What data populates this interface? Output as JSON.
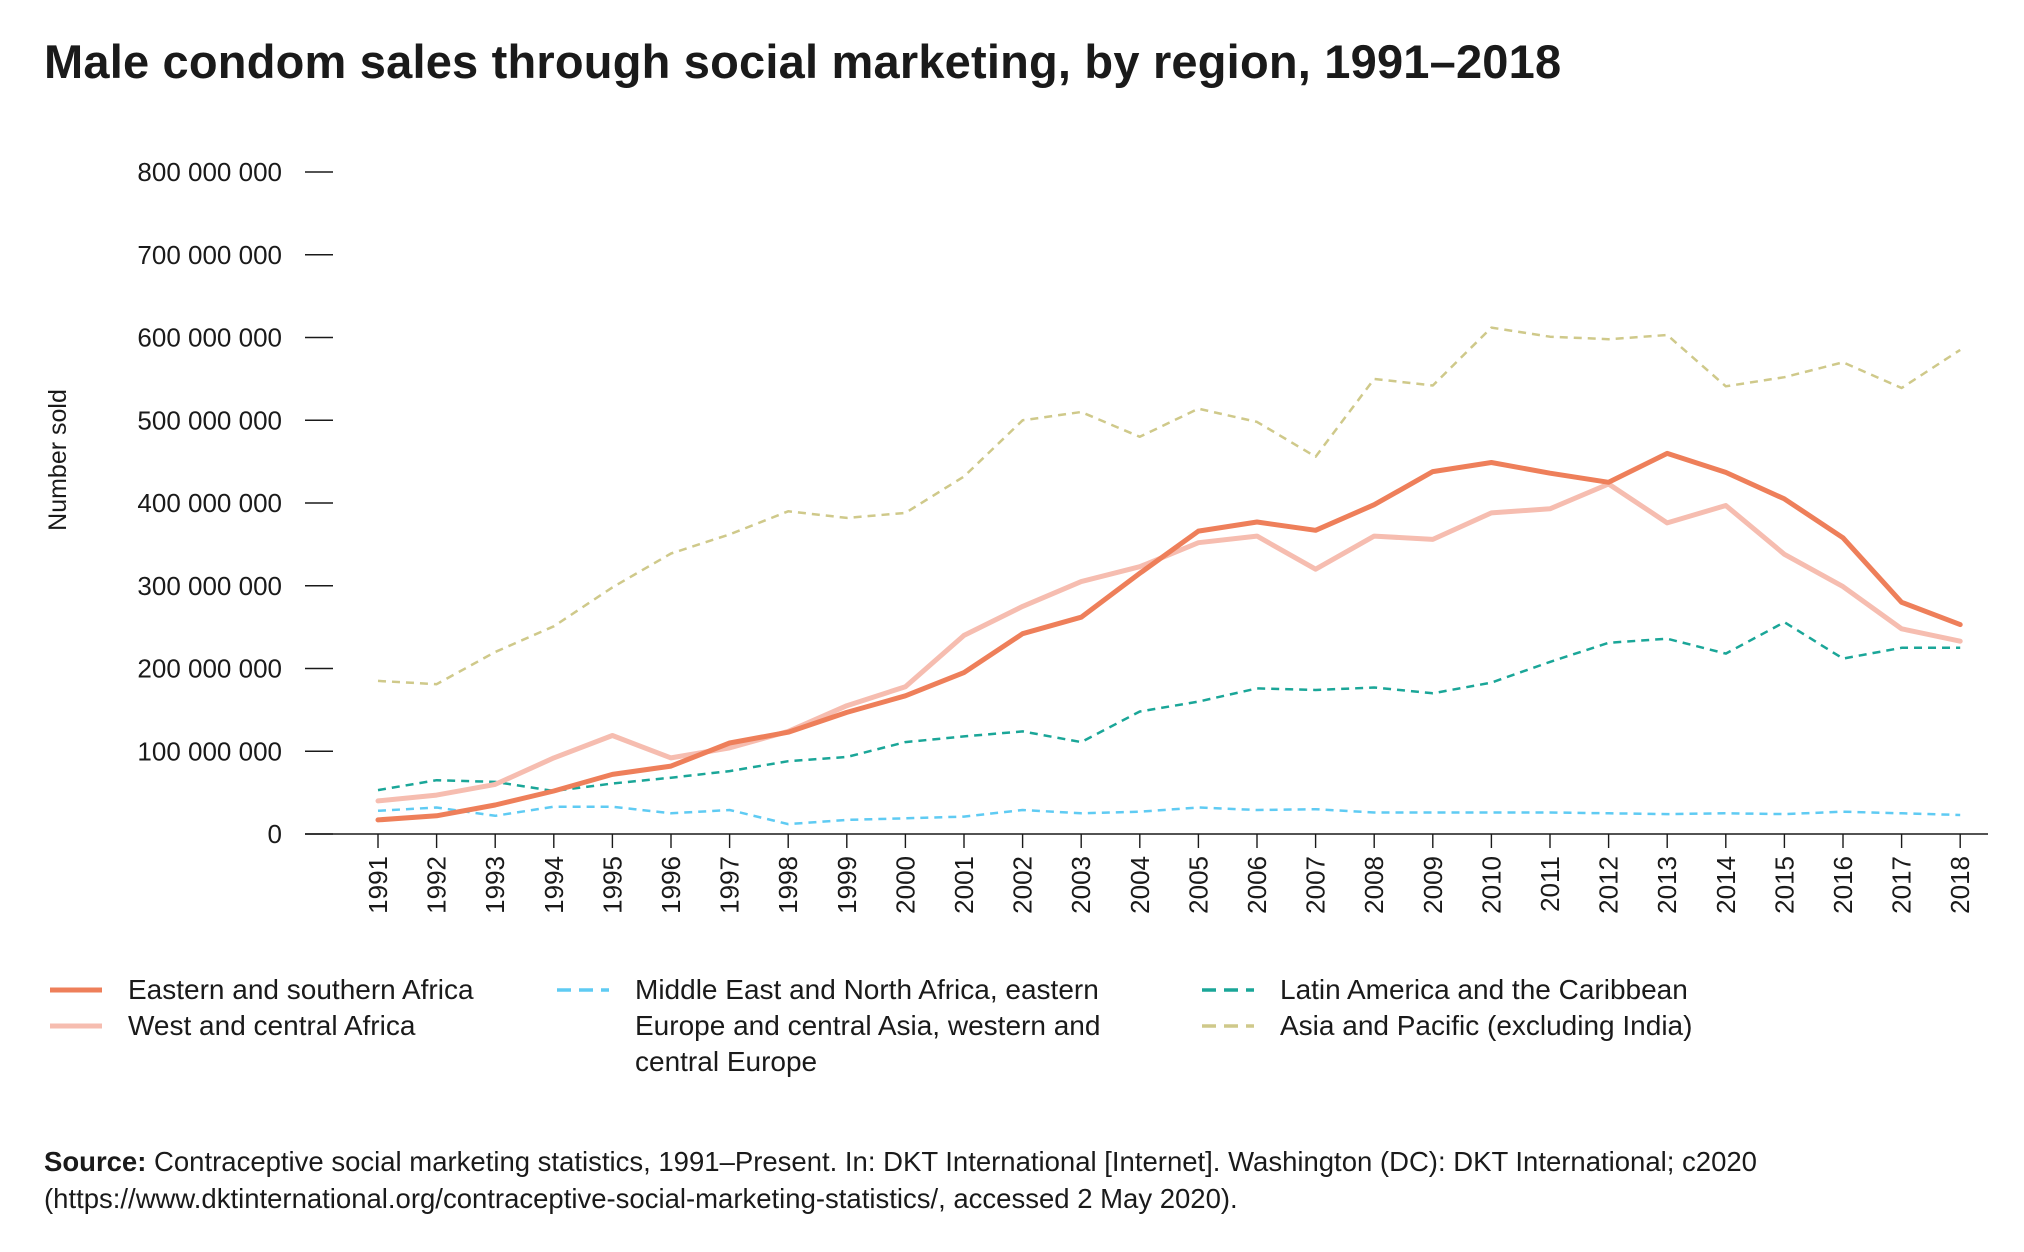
{
  "title": "Male condom sales through social marketing, by region, 1991–2018",
  "source_label": "Source:",
  "source_text": "Contraceptive social marketing statistics, 1991–Present. In: DKT International [Internet]. Washington (DC): DKT International; c2020 (https://www.dktinternational.org/contraceptive-social-marketing-statistics/, accessed 2 May 2020).",
  "chart_data": {
    "type": "line",
    "title": "Male condom sales through social marketing, by region, 1991–2018",
    "xlabel": "",
    "ylabel": "Number sold",
    "ylim": [
      0,
      800000000
    ],
    "yticks": [
      0,
      100000000,
      200000000,
      300000000,
      400000000,
      500000000,
      600000000,
      700000000,
      800000000
    ],
    "ytick_labels": [
      "0",
      "100 000 000",
      "200 000 000",
      "300 000 000",
      "400 000 000",
      "500 000 000",
      "600 000 000",
      "700 000 000",
      "800 000 000"
    ],
    "x": [
      "1991",
      "1992",
      "1993",
      "1994",
      "1995",
      "1996",
      "1997",
      "1998",
      "1999",
      "2000",
      "2001",
      "2002",
      "2003",
      "2004",
      "2005",
      "2006",
      "2007",
      "2008",
      "2009",
      "2010",
      "2011",
      "2012",
      "2013",
      "2014",
      "2015",
      "2016",
      "2017",
      "2018"
    ],
    "grid": false,
    "legend_position": "bottom",
    "series": [
      {
        "name": "Eastern and southern Africa",
        "color": "#ee7f5a",
        "style": "solid",
        "width": 5,
        "values": [
          17000000,
          22000000,
          35000000,
          52000000,
          72000000,
          82000000,
          110000000,
          123000000,
          147000000,
          167000000,
          195000000,
          242000000,
          262000000,
          315000000,
          366000000,
          377000000,
          367000000,
          398000000,
          438000000,
          449000000,
          436000000,
          425000000,
          460000000,
          437000000,
          405000000,
          358000000,
          280000000,
          253000000
        ]
      },
      {
        "name": "West and central Africa",
        "color": "#f6bdb0",
        "style": "solid",
        "width": 5,
        "values": [
          40000000,
          47000000,
          60000000,
          92000000,
          119000000,
          92000000,
          104000000,
          124000000,
          155000000,
          178000000,
          240000000,
          275000000,
          305000000,
          323000000,
          352000000,
          360000000,
          320000000,
          360000000,
          356000000,
          388000000,
          393000000,
          423000000,
          376000000,
          397000000,
          338000000,
          299000000,
          248000000,
          233000000
        ]
      },
      {
        "name": "Middle East and North Africa, eastern\nEurope and central Asia, western and\ncentral Europe",
        "color": "#5fcbf3",
        "style": "dashed",
        "width": 2.5,
        "values": [
          28000000,
          32000000,
          22000000,
          33000000,
          33000000,
          25000000,
          29000000,
          12000000,
          17000000,
          19000000,
          21000000,
          29000000,
          25000000,
          27000000,
          32000000,
          29000000,
          30000000,
          26000000,
          26000000,
          26000000,
          26000000,
          25000000,
          24000000,
          25000000,
          24000000,
          27000000,
          25000000,
          23000000
        ]
      },
      {
        "name": "Latin America and the Caribbean",
        "color": "#1aa698",
        "style": "dashed",
        "width": 2.5,
        "values": [
          53000000,
          65000000,
          63000000,
          52000000,
          61000000,
          68000000,
          76000000,
          88000000,
          93000000,
          111000000,
          118000000,
          124000000,
          111000000,
          148000000,
          160000000,
          176000000,
          174000000,
          177000000,
          170000000,
          183000000,
          208000000,
          231000000,
          236000000,
          218000000,
          256000000,
          212000000,
          225000000,
          225000000
        ]
      },
      {
        "name": "Asia and Pacific (excluding India)",
        "color": "#cfc98a",
        "style": "dashed",
        "width": 2.5,
        "values": [
          185000000,
          181000000,
          220000000,
          251000000,
          298000000,
          339000000,
          362000000,
          390000000,
          382000000,
          388000000,
          432000000,
          500000000,
          510000000,
          480000000,
          514000000,
          498000000,
          456000000,
          550000000,
          542000000,
          612000000,
          601000000,
          598000000,
          603000000,
          541000000,
          552000000,
          570000000,
          539000000,
          585000000
        ]
      }
    ]
  }
}
